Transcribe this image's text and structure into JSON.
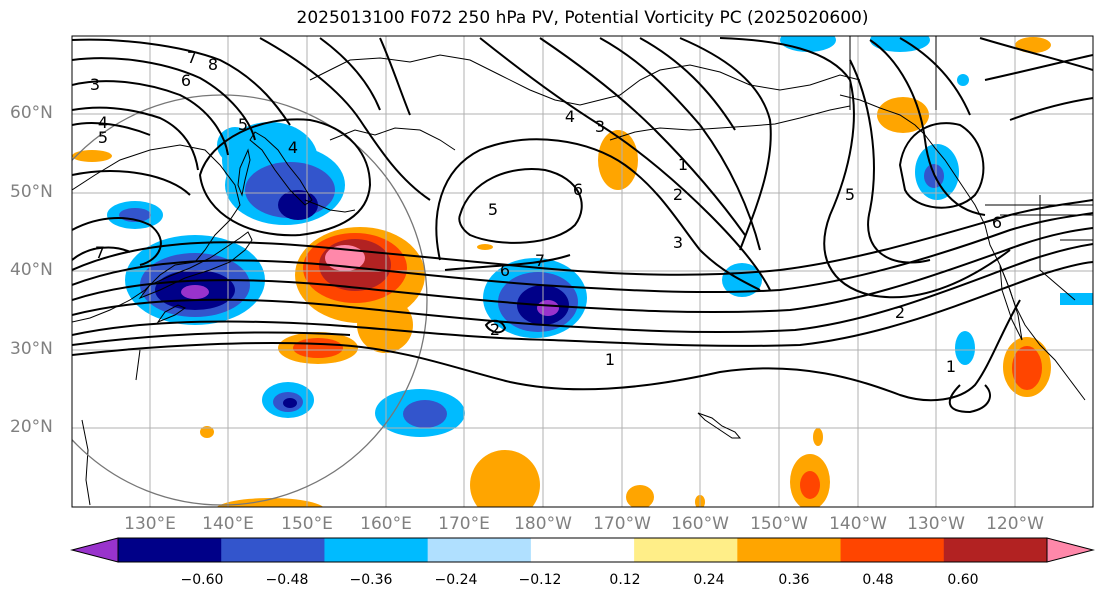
{
  "title": "2025013100 F072 250 hPa PV, Potential Vorticity PC (2025020600)",
  "lat_labels": [
    "60°N",
    "50°N",
    "40°N",
    "30°N",
    "20°N"
  ],
  "lon_labels": [
    "130°E",
    "140°E",
    "150°E",
    "160°E",
    "170°E",
    "180°W",
    "170°W",
    "160°W",
    "150°W",
    "140°W",
    "130°W",
    "120°W"
  ],
  "colorbar": {
    "ticks": [
      "−0.60",
      "−0.48",
      "−0.36",
      "−0.24",
      "−0.12",
      "0.12",
      "0.24",
      "0.36",
      "0.48",
      "0.60"
    ],
    "colors": [
      "#9933cc",
      "#000088",
      "#3355cc",
      "#00bbff",
      "#b0e0ff",
      "#ffffff",
      "#ffee88",
      "#ffa500",
      "#ff4500",
      "#b22222",
      "#ff88aa"
    ]
  },
  "contour_labels": [
    "3",
    "7",
    "8",
    "6",
    "4",
    "5",
    "5",
    "4",
    "7",
    "4",
    "3",
    "1",
    "2",
    "6",
    "5",
    "7",
    "6",
    "3",
    "2",
    "1",
    "5",
    "6",
    "2",
    "1"
  ]
}
